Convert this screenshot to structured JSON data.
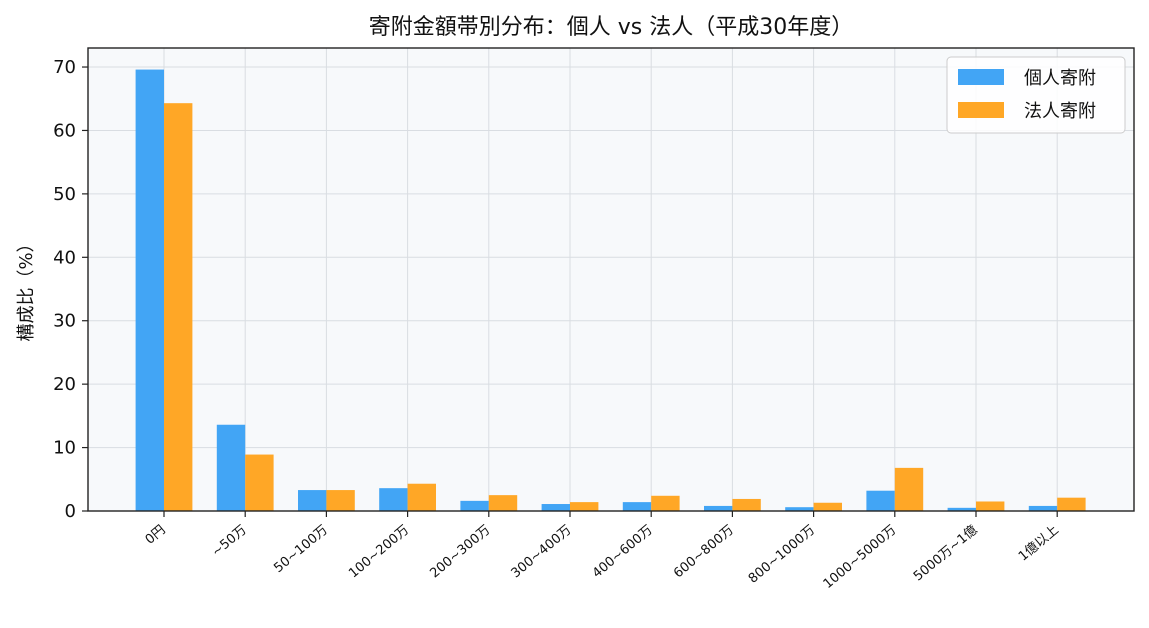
{
  "chart_data": {
    "type": "bar",
    "title": "寄附金額帯別分布：個人 vs 法人（平成30年度）",
    "xlabel": "",
    "ylabel": "構成比（%）",
    "ylim": [
      0,
      73
    ],
    "yticks": [
      0,
      10,
      20,
      30,
      40,
      50,
      60,
      70
    ],
    "grid": true,
    "legend_position": "top-right",
    "categories": [
      "0円",
      "~50万",
      "50~100万",
      "100~200万",
      "200~300万",
      "300~400万",
      "400~600万",
      "600~800万",
      "800~1000万",
      "1000~5000万",
      "5000万~1億",
      "1億以上"
    ],
    "series": [
      {
        "name": "個人寄附",
        "color": "#42a5f5",
        "values": [
          69.6,
          13.6,
          3.3,
          3.6,
          1.6,
          1.1,
          1.4,
          0.8,
          0.6,
          3.2,
          0.5,
          0.8
        ]
      },
      {
        "name": "法人寄附",
        "color": "#ffa726",
        "values": [
          64.3,
          8.9,
          3.3,
          4.3,
          2.5,
          1.4,
          2.4,
          1.9,
          1.3,
          6.8,
          1.5,
          2.1
        ]
      }
    ]
  }
}
